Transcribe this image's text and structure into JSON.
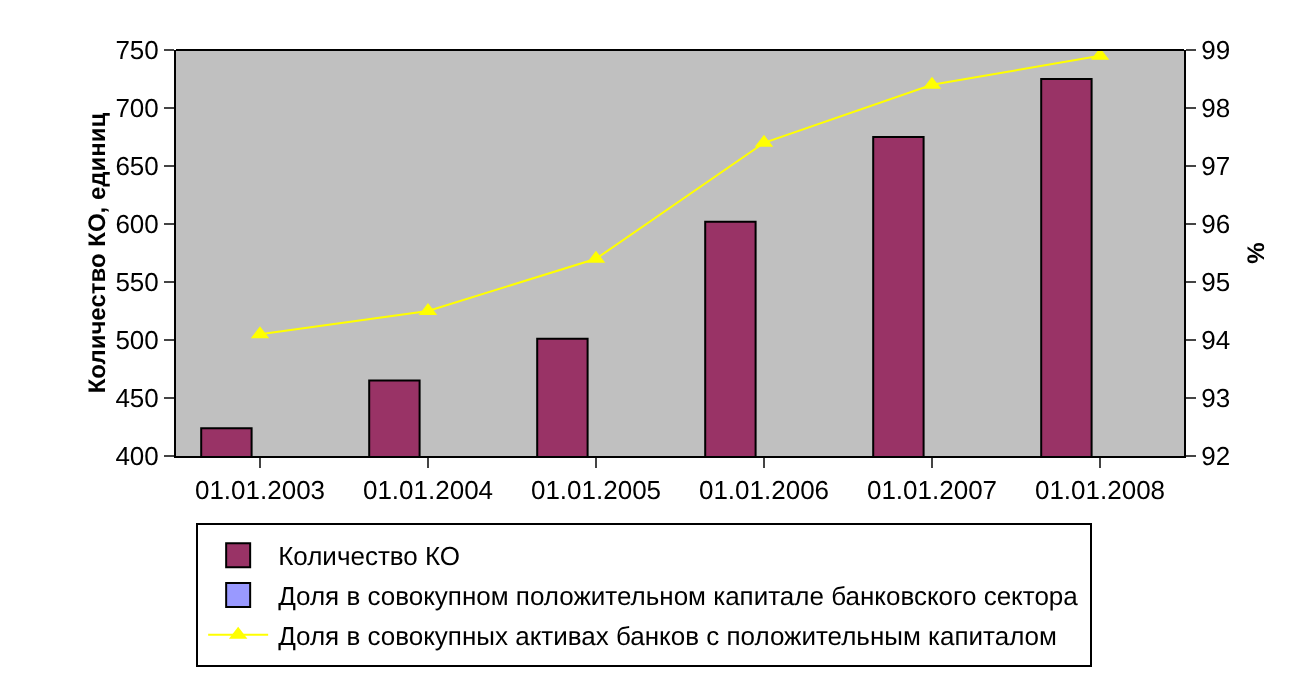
{
  "chart_data": {
    "type": "bar",
    "ylabel": "Количество КО, единиц",
    "y2label": "%",
    "categories": [
      "01.01.2003",
      "01.01.2004",
      "01.01.2005",
      "01.01.2006",
      "01.01.2007",
      "01.01.2008"
    ],
    "series": [
      {
        "name": "Количество КО",
        "color": "#993366",
        "values": [
          424,
          465,
          501,
          602,
          675,
          725
        ]
      },
      {
        "name": "Доля в совокупном положительном капитале банковского сектора",
        "color": "#9999ff",
        "values": [
          null,
          null,
          null,
          null,
          null,
          null
        ]
      },
      {
        "name": "Доля в совокупных активах банков с положительным капиталом",
        "type": "line",
        "axis": "y2",
        "color": "#ffff00",
        "marker": "triangle",
        "values": [
          94.1,
          94.5,
          95.4,
          97.4,
          98.4,
          98.9
        ]
      }
    ],
    "ylim": [
      400,
      750
    ],
    "yticks": [
      400,
      450,
      500,
      550,
      600,
      650,
      700,
      750
    ],
    "y2lim": [
      92,
      99
    ],
    "y2ticks": [
      92,
      93,
      94,
      95,
      96,
      97,
      98,
      99
    ],
    "grid": false,
    "legend": "bottom"
  }
}
